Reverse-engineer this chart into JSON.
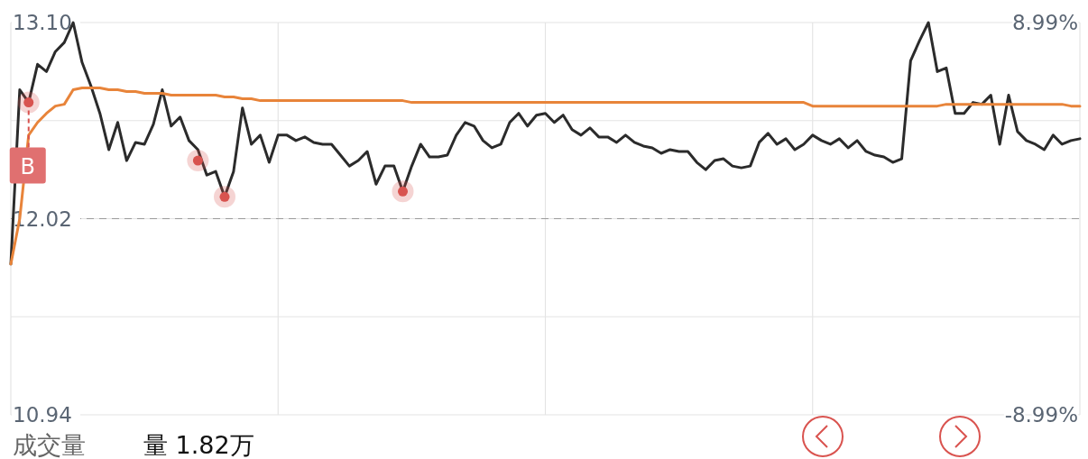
{
  "chart_data": {
    "type": "line",
    "categories": [
      null,
      null,
      null,
      null,
      null,
      null,
      null,
      null,
      null,
      null,
      null,
      null,
      null,
      null,
      null,
      null,
      null,
      null,
      null,
      null,
      null,
      null,
      null,
      null,
      null,
      null,
      null,
      null,
      null,
      null,
      null,
      null,
      null,
      null,
      null,
      null,
      null,
      null,
      null,
      null,
      null,
      null,
      null,
      null,
      null,
      null,
      null,
      null,
      null,
      null,
      null,
      null,
      null,
      null,
      null,
      null,
      null,
      null,
      null,
      null,
      null,
      null,
      null,
      null,
      null,
      null,
      null,
      null,
      null,
      null,
      null,
      null,
      null,
      null,
      null,
      null,
      null,
      null,
      null,
      null,
      null,
      null,
      null,
      null,
      null,
      null,
      null,
      null,
      null,
      null,
      null,
      null,
      null,
      null,
      null,
      null,
      null,
      null,
      null,
      null,
      null,
      null,
      null,
      null,
      null,
      null,
      null,
      null,
      null,
      null,
      null,
      null,
      null,
      null,
      null,
      null,
      null,
      null,
      null,
      null,
      null
    ],
    "ylim": [
      10.94,
      13.1
    ],
    "yticks": [
      {
        "value": 13.1,
        "label": "13.10"
      },
      {
        "value": 12.56,
        "label": null
      },
      {
        "value": 12.02,
        "label": "12.02"
      },
      {
        "value": 11.48,
        "label": null
      },
      {
        "value": 10.94,
        "label": "10.94"
      }
    ],
    "y2lim": [
      -8.99,
      8.99
    ],
    "y2ticks": [
      {
        "value": 8.99,
        "label": "8.99%"
      },
      {
        "value": -8.99,
        "label": "-8.99%"
      }
    ],
    "grid": true,
    "marker": "none",
    "line_style": "solid",
    "ref_lines": [
      {
        "axis": "y",
        "value": 12.02,
        "color": "#9a9a9a",
        "line_style": "dashed"
      }
    ],
    "annotations": [
      {
        "text": "B",
        "y": 12.66
      },
      "成交量",
      "量 1.82万"
    ],
    "series": [
      {
        "color": "#2b2b2b",
        "values": [
          11.77,
          12.73,
          12.66,
          12.87,
          12.83,
          12.94,
          12.99,
          13.1,
          12.88,
          12.75,
          12.6,
          12.4,
          12.55,
          12.34,
          12.44,
          12.43,
          12.54,
          12.73,
          12.53,
          12.58,
          12.45,
          12.4,
          12.26,
          12.28,
          12.14,
          12.28,
          12.63,
          12.43,
          12.48,
          12.33,
          12.48,
          12.48,
          12.45,
          12.47,
          12.44,
          12.43,
          12.43,
          12.37,
          12.31,
          12.34,
          12.39,
          12.21,
          12.31,
          12.31,
          12.17,
          12.31,
          12.43,
          12.36,
          12.36,
          12.37,
          12.48,
          12.55,
          12.53,
          12.45,
          12.41,
          12.43,
          12.55,
          12.6,
          12.53,
          12.59,
          12.6,
          12.55,
          12.59,
          12.51,
          12.48,
          12.52,
          12.47,
          12.47,
          12.44,
          12.48,
          12.44,
          12.42,
          12.41,
          12.38,
          12.4,
          12.39,
          12.39,
          12.33,
          12.29,
          12.34,
          12.35,
          12.31,
          12.3,
          12.31,
          12.44,
          12.49,
          12.43,
          12.46,
          12.4,
          12.43,
          12.48,
          12.45,
          12.43,
          12.46,
          12.41,
          12.45,
          12.39,
          12.37,
          12.36,
          12.33,
          12.35,
          12.89,
          13.0,
          13.1,
          12.83,
          12.85,
          12.6,
          12.6,
          12.66,
          12.65,
          12.7,
          12.43,
          12.7,
          12.5,
          12.45,
          12.43,
          12.4,
          12.48,
          12.43,
          12.45,
          12.46
        ]
      },
      {
        "color": "#e8843a",
        "values": [
          11.77,
          12.02,
          12.48,
          12.55,
          12.6,
          12.64,
          12.65,
          12.73,
          12.74,
          12.74,
          12.74,
          12.73,
          12.73,
          12.72,
          12.72,
          12.71,
          12.71,
          12.71,
          12.7,
          12.7,
          12.7,
          12.7,
          12.7,
          12.7,
          12.69,
          12.69,
          12.68,
          12.68,
          12.67,
          12.67,
          12.67,
          12.67,
          12.67,
          12.67,
          12.67,
          12.67,
          12.67,
          12.67,
          12.67,
          12.67,
          12.67,
          12.67,
          12.67,
          12.67,
          12.67,
          12.66,
          12.66,
          12.66,
          12.66,
          12.66,
          12.66,
          12.66,
          12.66,
          12.66,
          12.66,
          12.66,
          12.66,
          12.66,
          12.66,
          12.66,
          12.66,
          12.66,
          12.66,
          12.66,
          12.66,
          12.66,
          12.66,
          12.66,
          12.66,
          12.66,
          12.66,
          12.66,
          12.66,
          12.66,
          12.66,
          12.66,
          12.66,
          12.66,
          12.66,
          12.66,
          12.66,
          12.66,
          12.66,
          12.66,
          12.66,
          12.66,
          12.66,
          12.66,
          12.66,
          12.66,
          12.64,
          12.64,
          12.64,
          12.64,
          12.64,
          12.64,
          12.64,
          12.64,
          12.64,
          12.64,
          12.64,
          12.64,
          12.64,
          12.64,
          12.64,
          12.65,
          12.65,
          12.65,
          12.65,
          12.65,
          12.65,
          12.65,
          12.65,
          12.65,
          12.65,
          12.65,
          12.65,
          12.65,
          12.65,
          12.64,
          12.64
        ]
      },
      {
        "type": "scatter",
        "color": "#d9534f",
        "marker": "circle",
        "values": [
          null,
          null,
          12.66,
          null,
          null,
          null,
          null,
          null,
          null,
          null,
          null,
          null,
          null,
          null,
          null,
          null,
          null,
          null,
          null,
          null,
          null,
          12.34,
          null,
          null,
          12.14,
          null,
          null,
          null,
          null,
          null,
          null,
          null,
          null,
          null,
          null,
          null,
          null,
          null,
          null,
          null,
          null,
          null,
          null,
          null,
          12.17,
          null,
          null,
          null,
          null,
          null,
          null,
          null,
          null,
          null,
          null,
          null,
          null,
          null,
          null,
          null,
          null,
          null,
          null,
          null,
          null,
          null,
          null,
          null,
          null,
          null,
          null,
          null,
          null,
          null,
          null,
          null,
          null,
          null,
          null,
          null,
          null,
          null,
          null,
          null,
          null,
          null,
          null,
          null,
          null,
          null,
          null,
          null,
          null,
          null,
          null,
          null,
          null,
          null,
          null,
          null,
          null,
          null,
          null,
          null,
          null,
          null,
          null,
          null,
          null,
          null,
          null,
          null,
          null,
          null,
          null,
          null,
          null,
          null,
          null,
          null,
          null
        ]
      }
    ]
  }
}
